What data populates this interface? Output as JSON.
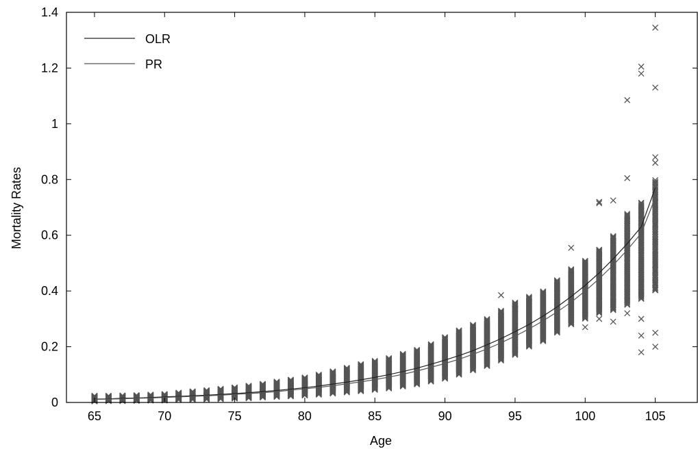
{
  "chart_data": {
    "type": "scatter",
    "title": "",
    "xlabel": "Age",
    "ylabel": "Mortality Rates",
    "xlim": [
      63,
      108
    ],
    "ylim": [
      0,
      1.4
    ],
    "x_ticks": [
      65,
      70,
      75,
      80,
      85,
      90,
      95,
      100,
      105
    ],
    "y_ticks": [
      0,
      0.2,
      0.4,
      0.6,
      0.8,
      1,
      1.2,
      1.4
    ],
    "y_tick_labels": [
      "0",
      "0.2",
      "0.4",
      "0.6",
      "0.8",
      "1",
      "1.2",
      "1.4"
    ],
    "grid": false,
    "legend_position": "top-left",
    "marker_color": "#555555",
    "ages": [
      65,
      66,
      67,
      68,
      69,
      70,
      71,
      72,
      73,
      74,
      75,
      76,
      77,
      78,
      79,
      80,
      81,
      82,
      83,
      84,
      85,
      86,
      87,
      88,
      89,
      90,
      91,
      92,
      93,
      94,
      95,
      96,
      97,
      98,
      99,
      100,
      101,
      102,
      103,
      104,
      105
    ],
    "scatter_ranges": [
      [
        0.004,
        0.024
      ],
      [
        0.005,
        0.024
      ],
      [
        0.005,
        0.025
      ],
      [
        0.006,
        0.026
      ],
      [
        0.007,
        0.028
      ],
      [
        0.007,
        0.03
      ],
      [
        0.009,
        0.035
      ],
      [
        0.01,
        0.04
      ],
      [
        0.011,
        0.044
      ],
      [
        0.012,
        0.049
      ],
      [
        0.014,
        0.054
      ],
      [
        0.015,
        0.06
      ],
      [
        0.018,
        0.067
      ],
      [
        0.02,
        0.075
      ],
      [
        0.022,
        0.082
      ],
      [
        0.025,
        0.09
      ],
      [
        0.028,
        0.1
      ],
      [
        0.032,
        0.112
      ],
      [
        0.036,
        0.125
      ],
      [
        0.04,
        0.138
      ],
      [
        0.045,
        0.15
      ],
      [
        0.05,
        0.16
      ],
      [
        0.057,
        0.175
      ],
      [
        0.065,
        0.19
      ],
      [
        0.075,
        0.21
      ],
      [
        0.085,
        0.235
      ],
      [
        0.1,
        0.26
      ],
      [
        0.115,
        0.28
      ],
      [
        0.13,
        0.3
      ],
      [
        0.15,
        0.33
      ],
      [
        0.17,
        0.36
      ],
      [
        0.2,
        0.38
      ],
      [
        0.22,
        0.4
      ],
      [
        0.25,
        0.44
      ],
      [
        0.28,
        0.48
      ],
      [
        0.3,
        0.51
      ],
      [
        0.32,
        0.55
      ],
      [
        0.33,
        0.6
      ],
      [
        0.35,
        0.68
      ],
      [
        0.37,
        0.72
      ],
      [
        0.4,
        0.8
      ]
    ],
    "outliers": [
      {
        "x": 94,
        "y": 0.385
      },
      {
        "x": 99,
        "y": 0.555
      },
      {
        "x": 100,
        "y": 0.27
      },
      {
        "x": 101,
        "y": 0.72
      },
      {
        "x": 101,
        "y": 0.715
      },
      {
        "x": 101,
        "y": 0.3
      },
      {
        "x": 102,
        "y": 0.725
      },
      {
        "x": 102,
        "y": 0.29
      },
      {
        "x": 103,
        "y": 1.085
      },
      {
        "x": 103,
        "y": 0.805
      },
      {
        "x": 103,
        "y": 0.32
      },
      {
        "x": 104,
        "y": 1.205
      },
      {
        "x": 104,
        "y": 1.18
      },
      {
        "x": 104,
        "y": 0.24
      },
      {
        "x": 104,
        "y": 0.18
      },
      {
        "x": 104,
        "y": 0.3
      },
      {
        "x": 105,
        "y": 1.345
      },
      {
        "x": 105,
        "y": 1.13
      },
      {
        "x": 105,
        "y": 0.88
      },
      {
        "x": 105,
        "y": 0.86
      },
      {
        "x": 105,
        "y": 0.2
      },
      {
        "x": 105,
        "y": 0.25
      }
    ],
    "series": [
      {
        "name": "OLR",
        "color": "#222222",
        "x": [
          65,
          66,
          67,
          68,
          69,
          70,
          71,
          72,
          73,
          74,
          75,
          76,
          77,
          78,
          79,
          80,
          81,
          82,
          83,
          84,
          85,
          86,
          87,
          88,
          89,
          90,
          91,
          92,
          93,
          94,
          95,
          96,
          97,
          98,
          99,
          100,
          101,
          102,
          103,
          104,
          105
        ],
        "y": [
          0.012,
          0.013,
          0.015,
          0.016,
          0.018,
          0.02,
          0.022,
          0.024,
          0.026,
          0.029,
          0.032,
          0.035,
          0.039,
          0.043,
          0.048,
          0.053,
          0.059,
          0.066,
          0.073,
          0.081,
          0.09,
          0.1,
          0.111,
          0.123,
          0.137,
          0.152,
          0.168,
          0.186,
          0.207,
          0.229,
          0.254,
          0.28,
          0.31,
          0.343,
          0.38,
          0.42,
          0.465,
          0.515,
          0.57,
          0.63,
          0.77
        ]
      },
      {
        "name": "PR",
        "color": "#555555",
        "x": [
          65,
          66,
          67,
          68,
          69,
          70,
          71,
          72,
          73,
          74,
          75,
          76,
          77,
          78,
          79,
          80,
          81,
          82,
          83,
          84,
          85,
          86,
          87,
          88,
          89,
          90,
          91,
          92,
          93,
          94,
          95,
          96,
          97,
          98,
          99,
          100,
          101,
          102,
          103,
          104,
          105
        ],
        "y": [
          0.011,
          0.012,
          0.013,
          0.015,
          0.016,
          0.018,
          0.02,
          0.022,
          0.024,
          0.026,
          0.029,
          0.032,
          0.035,
          0.039,
          0.044,
          0.049,
          0.054,
          0.06,
          0.067,
          0.074,
          0.082,
          0.091,
          0.101,
          0.113,
          0.126,
          0.14,
          0.155,
          0.173,
          0.192,
          0.214,
          0.238,
          0.264,
          0.293,
          0.325,
          0.36,
          0.4,
          0.444,
          0.493,
          0.547,
          0.607,
          0.735
        ]
      }
    ]
  }
}
